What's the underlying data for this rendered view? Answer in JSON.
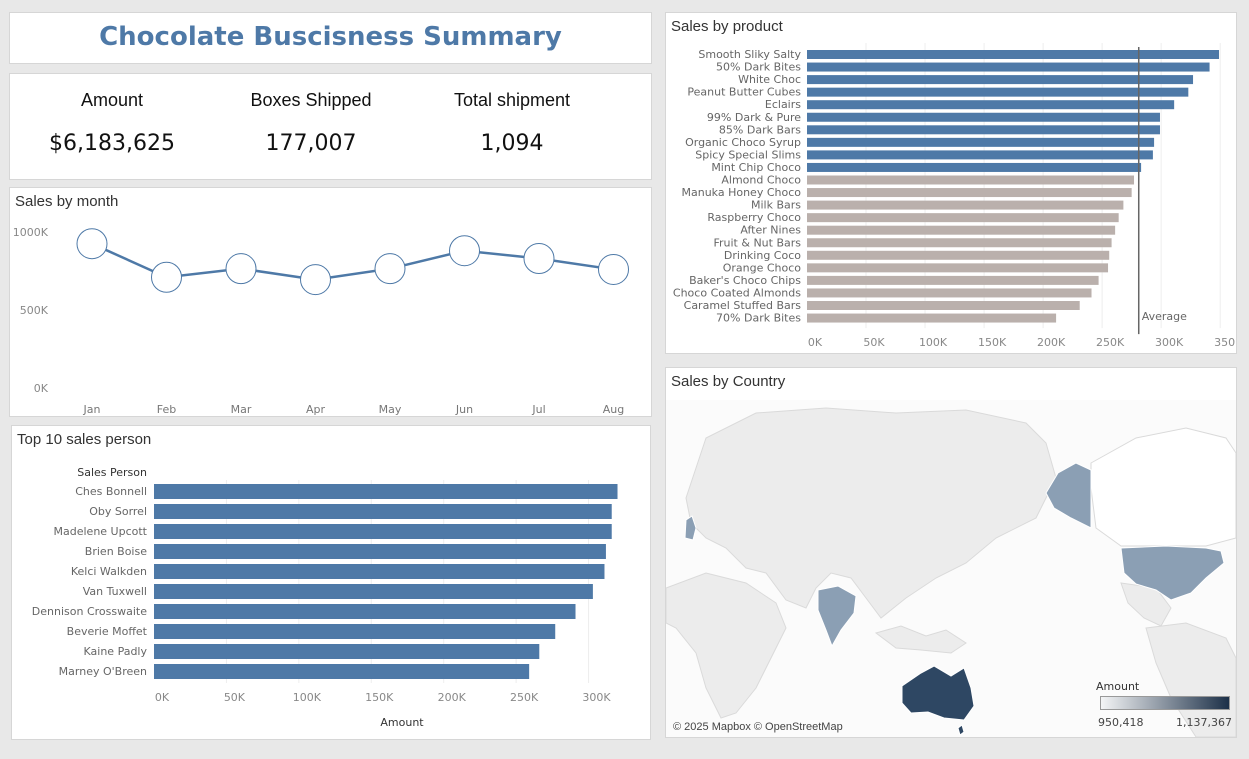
{
  "header": {
    "title": "Chocolate Buscisness Summary"
  },
  "kpis": [
    {
      "label": "Amount",
      "value": "$6,183,625"
    },
    {
      "label": "Boxes Shipped",
      "value": "177,007"
    },
    {
      "label": "Total shipment",
      "value": "1,094"
    }
  ],
  "month_panel": {
    "title": "Sales by month"
  },
  "person_panel": {
    "title": "Top 10 sales person",
    "yfield": "Sales Person",
    "xlabel": "Amount"
  },
  "product_panel": {
    "title": "Sales by product",
    "reference_label": "Average"
  },
  "country_panel": {
    "title": "Sales by Country",
    "legend_title": "Amount",
    "legend_min": "950,418",
    "legend_max": "1,137,367",
    "credit": "© 2025 Mapbox © OpenStreetMap"
  },
  "colors": {
    "accent": "#4e79a7",
    "muted": "#bab0ac",
    "map_dark": "#2e4763",
    "map_light": "#f4f5f6"
  },
  "chart_data": [
    {
      "id": "sales_by_month",
      "type": "line",
      "title": "Sales by month",
      "categories": [
        "Jan",
        "Feb",
        "Mar",
        "Apr",
        "May",
        "Jun",
        "Jul",
        "Aug"
      ],
      "values": [
        925000,
        710000,
        765000,
        695000,
        765000,
        880000,
        830000,
        760000
      ],
      "ylim": [
        0,
        1000000
      ],
      "yticks": [
        0,
        500000,
        1000000
      ],
      "ytick_labels": [
        "0K",
        "500K",
        "1000K"
      ],
      "grid": false
    },
    {
      "id": "sales_by_product",
      "type": "bar",
      "orientation": "horizontal",
      "title": "Sales by product",
      "categories": [
        "Smooth Sliky Salty",
        "50% Dark Bites",
        "White Choc",
        "Peanut Butter Cubes",
        "Eclairs",
        "99% Dark & Pure",
        "85% Dark Bars",
        "Organic Choco Syrup",
        "Spicy Special Slims",
        "Mint Chip Choco",
        "Almond Choco",
        "Manuka Honey Choco",
        "Milk Bars",
        "Raspberry Choco",
        "After Nines",
        "Fruit & Nut Bars",
        "Drinking Coco",
        "Orange Choco",
        "Baker's Choco Chips",
        "Choco Coated Almonds",
        "Caramel Stuffed Bars",
        "70% Dark Bites"
      ],
      "values": [
        349000,
        341000,
        327000,
        323000,
        311000,
        299000,
        299000,
        294000,
        293000,
        283000,
        277000,
        275000,
        268000,
        264000,
        261000,
        258000,
        256000,
        255000,
        247000,
        241000,
        231000,
        211000
      ],
      "highlight_count": 10,
      "reference_line": {
        "label": "Average",
        "value": 281000
      },
      "xlim": [
        0,
        360000
      ],
      "xticks": [
        0,
        50000,
        100000,
        150000,
        200000,
        250000,
        300000,
        350000
      ],
      "xtick_labels": [
        "0K",
        "50K",
        "100K",
        "150K",
        "200K",
        "250K",
        "300K",
        "350K"
      ],
      "grid": true
    },
    {
      "id": "top_sales_person",
      "type": "bar",
      "orientation": "horizontal",
      "title": "Top 10 sales person",
      "categories": [
        "Ches Bonnell",
        "Oby Sorrel",
        "Madelene Upcott",
        "Brien Boise",
        "Kelci Walkden",
        "Van Tuxwell",
        "Dennison Crosswaite",
        "Beverie Moffet",
        "Kaine Padly",
        "Marney O'Breen"
      ],
      "values": [
        320000,
        316000,
        316000,
        312000,
        311000,
        303000,
        291000,
        277000,
        266000,
        259000
      ],
      "xlabel": "Amount",
      "ylabel": "Sales Person",
      "xlim": [
        0,
        330000
      ],
      "xticks": [
        0,
        50000,
        100000,
        150000,
        200000,
        250000,
        300000
      ],
      "xtick_labels": [
        "0K",
        "50K",
        "100K",
        "150K",
        "200K",
        "250K",
        "300K"
      ],
      "grid": true
    },
    {
      "id": "sales_by_country",
      "type": "map",
      "title": "Sales by Country",
      "countries": [
        "UK",
        "India",
        "USA",
        "Canada",
        "Australia",
        "New Zealand"
      ],
      "legend": {
        "title": "Amount",
        "min": 950418,
        "max": 1137367
      }
    }
  ]
}
